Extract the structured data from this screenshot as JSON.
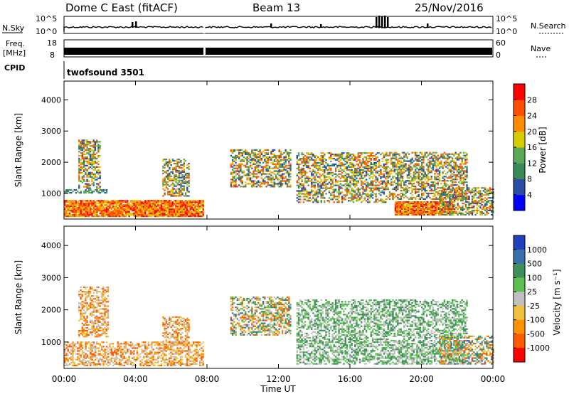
{
  "header": {
    "radar": "Dome C East (fitACF)",
    "beam": "Beam 13",
    "date": "25/Nov/2016"
  },
  "strips": {
    "nsky_label": "N.Sky",
    "nsky_ticks": [
      "10^5",
      "10^0"
    ],
    "nsearch_label": "N.Search",
    "nsearch_ticks": [
      "10^5",
      "10^0"
    ],
    "freq_label_1": "Freq.",
    "freq_label_2": "[MHz]",
    "freq_ticks": [
      "18",
      "8"
    ],
    "nave_label": "Nave",
    "nave_ticks": [
      "60",
      "0"
    ],
    "cpid_label": "CPID",
    "cpid_value": "twofsound 3501"
  },
  "colors": {
    "power": [
      "#0000ff",
      "#2a4da8",
      "#3a8a5a",
      "#5aa858",
      "#d8cc00",
      "#ff8c00",
      "#ff5000",
      "#ff0000"
    ],
    "velocity": [
      "#2040c0",
      "#3a6fb0",
      "#3e8f5a",
      "#5cc050",
      "#c0c0c0",
      "#f0c040",
      "#ff9000",
      "#ff5a00",
      "#ff0000"
    ]
  },
  "chart_data": [
    {
      "type": "heatmap",
      "title": "Power",
      "ylabel": "Slant Range [km]",
      "yticks": [
        "1000",
        "2000",
        "3000",
        "4000"
      ],
      "ylim": [
        180,
        4600
      ],
      "xlim_hours": [
        0,
        24
      ],
      "colorbar_label": "Power [dB]",
      "colorbar_ticks": [
        "4",
        "8",
        "12",
        "16",
        "20",
        "24",
        "28"
      ],
      "colorbar_range": [
        0,
        32
      ],
      "regions": [
        {
          "t": [
            0.0,
            7.8
          ],
          "r": [
            250,
            750
          ],
          "level": "high"
        },
        {
          "t": [
            0.0,
            2.4
          ],
          "r": [
            1000,
            1100
          ],
          "level": "mid"
        },
        {
          "t": [
            0.8,
            2.0
          ],
          "r": [
            1150,
            2700
          ],
          "level": "mixed"
        },
        {
          "t": [
            5.5,
            7.0
          ],
          "r": [
            900,
            2100
          ],
          "level": "mixed"
        },
        {
          "t": [
            9.3,
            12.7
          ],
          "r": [
            1200,
            2400
          ],
          "level": "mixed"
        },
        {
          "t": [
            13.0,
            18.0
          ],
          "r": [
            700,
            2300
          ],
          "level": "mixed"
        },
        {
          "t": [
            18.5,
            21.8
          ],
          "r": [
            300,
            750
          ],
          "level": "high"
        },
        {
          "t": [
            18.0,
            22.5
          ],
          "r": [
            800,
            2300
          ],
          "level": "mixed"
        },
        {
          "t": [
            21.0,
            24.0
          ],
          "r": [
            300,
            1200
          ],
          "level": "mixed"
        }
      ]
    },
    {
      "type": "heatmap",
      "title": "Velocity",
      "ylabel": "Slant Range [km]",
      "yticks": [
        "1000",
        "2000",
        "3000",
        "4000"
      ],
      "ylim": [
        180,
        4600
      ],
      "xlim_hours": [
        0,
        24
      ],
      "colorbar_label": "Velocity [m s⁻¹]",
      "colorbar_ticks": [
        "1000",
        "500",
        "100",
        "25",
        "-25",
        "-100",
        "-500",
        "-1000"
      ],
      "regions": [
        {
          "t": [
            0.0,
            7.8
          ],
          "r": [
            250,
            1000
          ],
          "level": "negative"
        },
        {
          "t": [
            0.8,
            2.5
          ],
          "r": [
            1150,
            2700
          ],
          "level": "negative"
        },
        {
          "t": [
            5.5,
            7.0
          ],
          "r": [
            900,
            1800
          ],
          "level": "negative"
        },
        {
          "t": [
            9.3,
            12.7
          ],
          "r": [
            1200,
            2400
          ],
          "level": "mixed"
        },
        {
          "t": [
            13.0,
            18.0
          ],
          "r": [
            300,
            2300
          ],
          "level": "positive"
        },
        {
          "t": [
            18.0,
            22.5
          ],
          "r": [
            300,
            2300
          ],
          "level": "positive"
        },
        {
          "t": [
            21.0,
            24.0
          ],
          "r": [
            300,
            1200
          ],
          "level": "mixed"
        }
      ]
    }
  ],
  "xaxis": {
    "ticks": [
      "00:00",
      "04:00",
      "08:00",
      "12:00",
      "16:00",
      "20:00",
      "00:00"
    ],
    "label": "Time UT"
  }
}
